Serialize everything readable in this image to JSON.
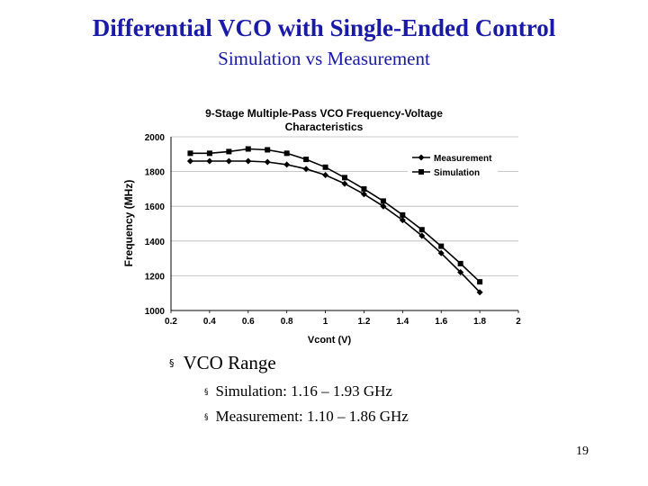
{
  "slide": {
    "title": "Differential VCO with Single-Ended Control",
    "subtitle": "Simulation vs Measurement",
    "page_number": "19"
  },
  "bullets": {
    "main": "VCO Range",
    "bullet_symbol": "§",
    "sub": [
      "Simulation: 1.16 – 1.93 GHz",
      "Measurement: 1.10 – 1.86 GHz"
    ]
  },
  "chart_data": {
    "type": "line",
    "title": "9-Stage Multiple-Pass VCO Frequency-Voltage Characteristics",
    "title_lines": [
      "9-Stage Multiple-Pass VCO Frequency-Voltage",
      "Characteristics"
    ],
    "xlabel": "Vcont (V)",
    "ylabel": "Frequency (MHz)",
    "xlim": [
      0.2,
      2
    ],
    "ylim": [
      1000,
      2000
    ],
    "xticks": [
      "0.2",
      "0.4",
      "0.6",
      "0.8",
      "1",
      "1.2",
      "1.4",
      "1.6",
      "1.8",
      "2"
    ],
    "yticks": [
      "1000",
      "1200",
      "1400",
      "1600",
      "1800",
      "2000"
    ],
    "legend_position": "top-right",
    "x": [
      0.3,
      0.4,
      0.5,
      0.6,
      0.7,
      0.8,
      0.9,
      1.0,
      1.1,
      1.2,
      1.3,
      1.4,
      1.5,
      1.6,
      1.7,
      1.8
    ],
    "series": [
      {
        "name": "Measurement",
        "marker": "diamond",
        "values": [
          1860,
          1860,
          1860,
          1860,
          1855,
          1840,
          1815,
          1780,
          1730,
          1670,
          1600,
          1520,
          1430,
          1330,
          1220,
          1105
        ]
      },
      {
        "name": "Simulation",
        "marker": "square",
        "values": [
          1905,
          1905,
          1915,
          1930,
          1925,
          1905,
          1870,
          1825,
          1765,
          1700,
          1630,
          1550,
          1465,
          1370,
          1270,
          1165
        ]
      }
    ]
  }
}
